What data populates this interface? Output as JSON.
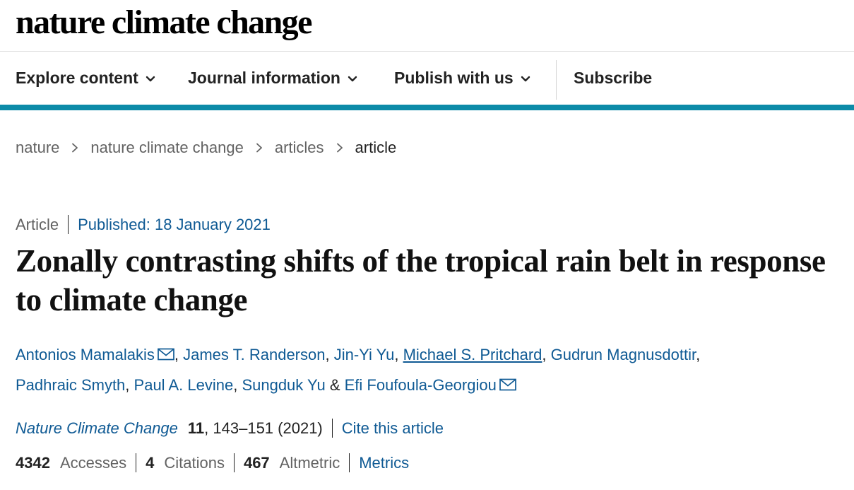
{
  "site": {
    "logo_text": "nature climate change"
  },
  "nav": {
    "items": [
      {
        "label": "Explore content",
        "has_dropdown": true
      },
      {
        "label": "Journal information",
        "has_dropdown": true
      },
      {
        "label": "Publish with us",
        "has_dropdown": true
      },
      {
        "label": "Subscribe",
        "has_dropdown": false
      }
    ]
  },
  "breadcrumb": [
    "nature",
    "nature climate change",
    "articles",
    "article"
  ],
  "article": {
    "type": "Article",
    "published": "Published: 18 January 2021",
    "title": "Zonally contrasting shifts of the tropical rain belt in response to climate change",
    "authors": [
      {
        "name": "Antonios Mamalakis",
        "email_icon": true,
        "sep": ", "
      },
      {
        "name": "James T. Randerson",
        "email_icon": false,
        "sep": ", "
      },
      {
        "name": "Jin-Yi Yu",
        "email_icon": false,
        "sep": ", "
      },
      {
        "name": "Michael S. Pritchard",
        "email_icon": false,
        "sep": ", "
      },
      {
        "name": "Gudrun Magnusdottir",
        "email_icon": false,
        "sep": ","
      },
      {
        "name": "Padhraic Smyth",
        "email_icon": false,
        "sep": ", "
      },
      {
        "name": "Paul A. Levine",
        "email_icon": false,
        "sep": ", "
      },
      {
        "name": "Sungduk Yu",
        "email_icon": false,
        "sep": " & "
      },
      {
        "name": "Efi Foufoula-Georgiou",
        "email_icon": true,
        "sep": ""
      }
    ]
  },
  "citation": {
    "journal": "Nature Climate Change",
    "volume": "11",
    "pages_year": ", 143–151 (2021)",
    "cite_label": "Cite this article"
  },
  "metrics": {
    "accesses_value": "4342",
    "accesses_label": "Accesses",
    "citations_value": "4",
    "citations_label": "Citations",
    "altmetric_value": "467",
    "altmetric_label": "Altmetric",
    "metrics_link": "Metrics"
  },
  "colors": {
    "accent_bar": "#0d8ba8",
    "link": "#0f5a94",
    "muted": "#626262"
  },
  "icons": {
    "dropdown": "chevron-down-icon",
    "breadcrumb_sep": "chevron-right-icon",
    "email": "envelope-icon"
  }
}
